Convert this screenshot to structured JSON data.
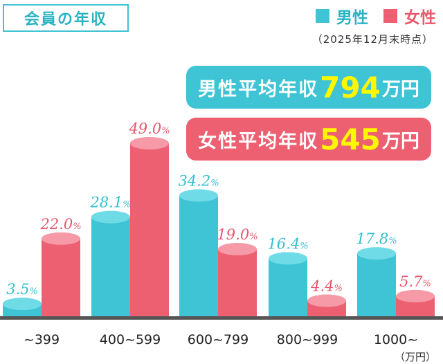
{
  "title": "会員の年収",
  "as_of": "（2025年12月末時点）",
  "averages": {
    "male": {
      "label": "男性平均年収",
      "value": "794",
      "unit": "万円"
    },
    "female": {
      "label": "女性平均年収",
      "value": "545",
      "unit": "万円"
    }
  },
  "unit_note": "（万円）",
  "colors": {
    "male": "#3ec4d4",
    "female": "#ec6072",
    "axis": "#555555"
  },
  "chart_data": {
    "type": "bar",
    "categories": [
      "~399",
      "400~599",
      "600~799",
      "800~999",
      "1000~"
    ],
    "series": [
      {
        "name": "男性",
        "values": [
          3.5,
          28.1,
          34.2,
          16.4,
          17.8
        ]
      },
      {
        "name": "女性",
        "values": [
          22.0,
          49.0,
          19.0,
          4.4,
          5.7
        ]
      }
    ],
    "value_suffix": "%",
    "ylim": [
      0,
      49.0
    ],
    "grid": false,
    "legend": "top-right"
  }
}
